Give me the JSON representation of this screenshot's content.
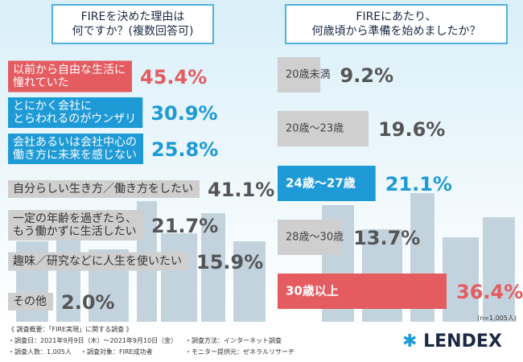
{
  "chart_data": [
    {
      "type": "bar",
      "layout": "panel",
      "title": "FIREを決めた理由は\n何ですか？(複数回答可)",
      "categories": [
        "以前から自由な生活に\n憧れていた",
        "とにかく会社に\nとらわれるのがウンザリ",
        "会社あるいは会社中心の\n働き方に未来を感じない",
        "自分らしい生き方／働き方をしたい",
        "一定の年齢を過ぎたら、\nもう働かずに生活したい",
        "趣味／研究などに人生を使いたい",
        "その他"
      ],
      "values": [
        45.4,
        30.9,
        25.8,
        41.1,
        21.7,
        15.9,
        2.0
      ],
      "value_labels": [
        "45.4%",
        "30.9%",
        "25.8%",
        "41.1%",
        "21.7%",
        "15.9%",
        "2.0%"
      ],
      "colors": [
        "#e45b60",
        "#1e9ad6",
        "#1e9ad6",
        "#cfcfcf",
        "#cfcfcf",
        "#cfcfcf",
        "#cfcfcf"
      ],
      "text_colors": [
        "#e45b60",
        "#1e9ad6",
        "#1e9ad6",
        "#555555",
        "#555555",
        "#555555",
        "#555555"
      ]
    },
    {
      "type": "bar",
      "layout": "proportional",
      "title": "FIREにあたり、\n何歳頃から準備を始めましたか？",
      "categories": [
        "20歳未満",
        "20歳～23歳",
        "24歳～27歳",
        "28歳～30歳",
        "30歳以上"
      ],
      "values": [
        9.2,
        19.6,
        21.1,
        13.7,
        36.4
      ],
      "value_labels": [
        "9.2%",
        "19.6%",
        "21.1%",
        "13.7%",
        "36.4%"
      ],
      "colors": [
        "#cfcfcf",
        "#cfcfcf",
        "#1e9ad6",
        "#cfcfcf",
        "#e45b60"
      ],
      "text_colors": [
        "#555555",
        "#555555",
        "#1e9ad6",
        "#555555",
        "#e45b60"
      ]
    }
  ],
  "footer": {
    "note": "(n=1,005人)",
    "heading": "《 調査概要：「FIRE実現」に関する調査 》",
    "items": [
      "・調査日：2021年9月9日（木）～2021年9月10日（金）",
      "・調査方法：インターネット調査",
      "・調査人数：1,005人",
      "・調査対象：FIRE成功者",
      "・モニター提供元：ゼネラルリサーチ"
    ],
    "brand": "LENDEX"
  }
}
